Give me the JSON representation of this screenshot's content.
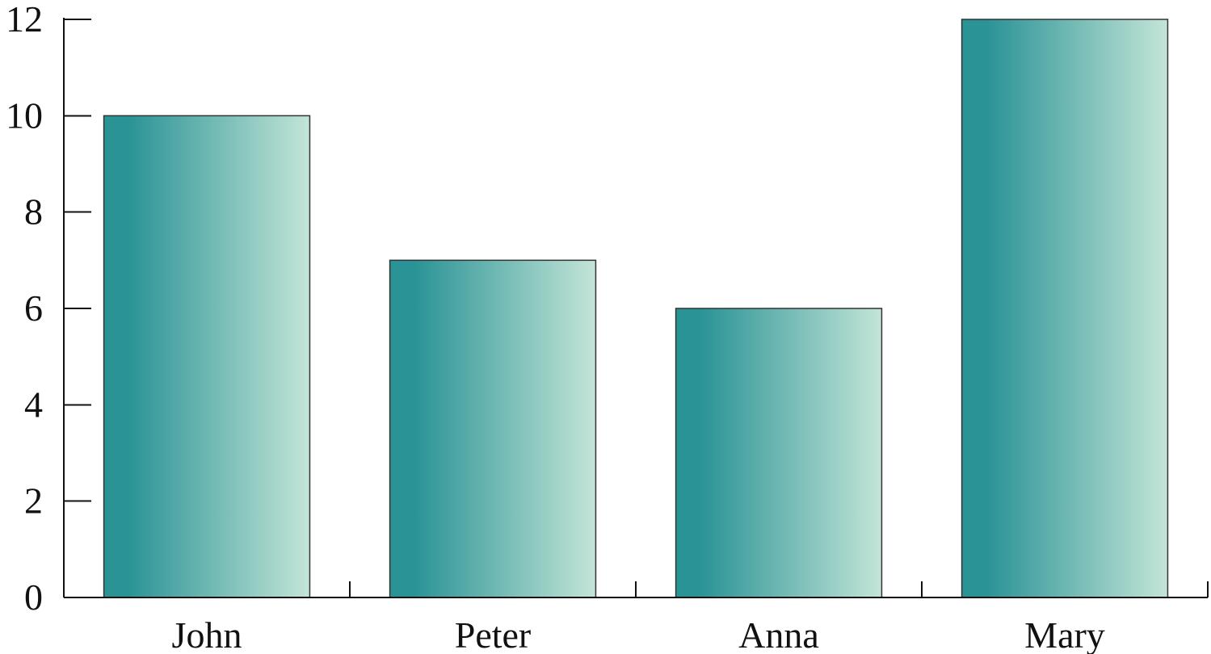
{
  "chart_data": {
    "type": "bar",
    "categories": [
      "John",
      "Peter",
      "Anna",
      "Mary"
    ],
    "values": [
      10,
      7,
      6,
      12
    ],
    "title": "",
    "xlabel": "",
    "ylabel": "",
    "ylim": [
      0,
      12
    ],
    "yticks": [
      "0",
      "2",
      "4",
      "6",
      "8",
      "10",
      "12"
    ],
    "grid": false,
    "legend": "none",
    "colors": {
      "bar_gradient_start": "#2a9396",
      "bar_gradient_end": "#c3e5d7",
      "axis": "#111111",
      "bar_border": "#333333"
    }
  }
}
